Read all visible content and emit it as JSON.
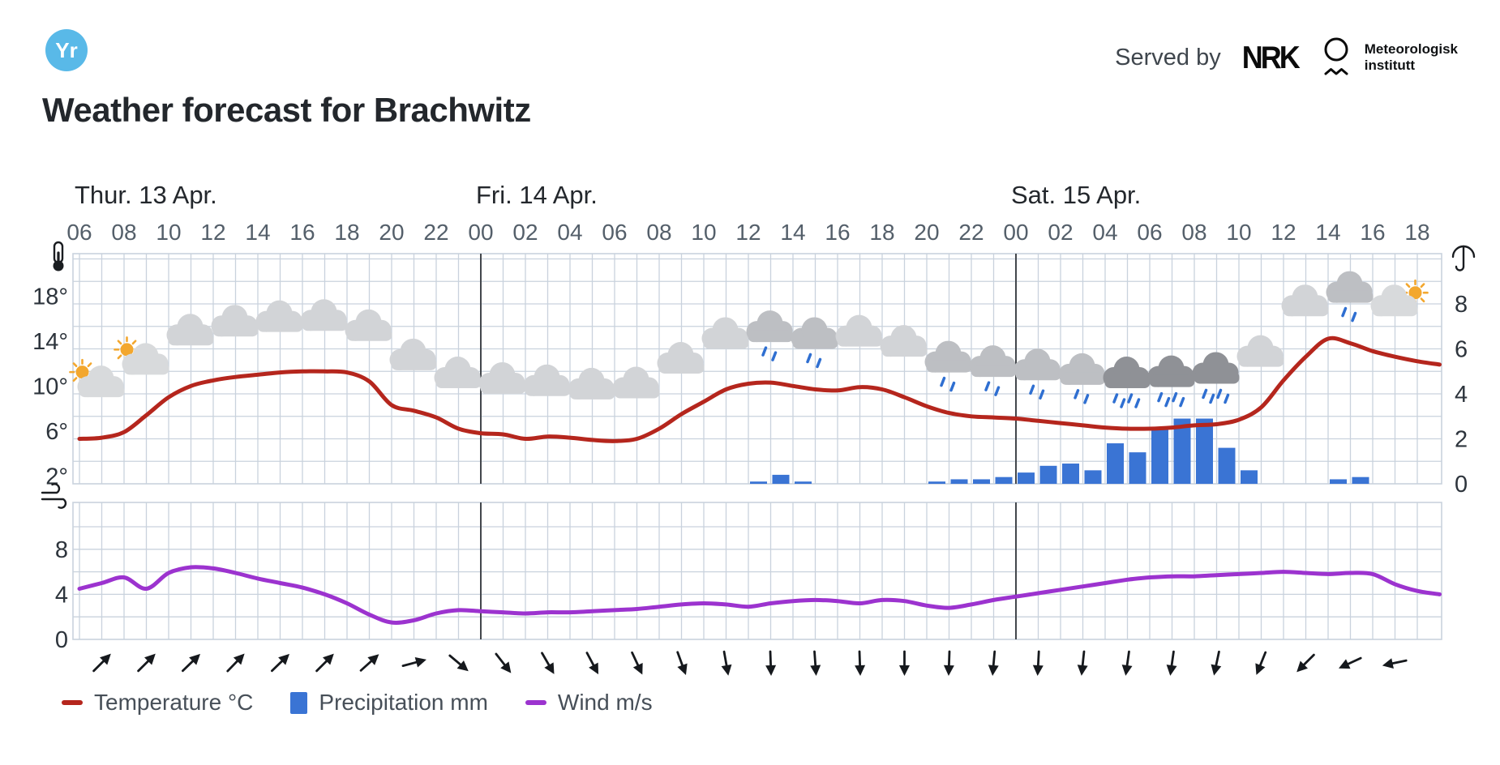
{
  "header": {
    "logo_text": "Yr",
    "served_by": "Served by",
    "nrk_logo_text": "NRK",
    "met_logo_line1": "Meteorologisk",
    "met_logo_line2": "institutt"
  },
  "title": "Weather forecast for Brachwitz",
  "legend": [
    {
      "label": "Temperature °C",
      "color": "#b5261d",
      "type": "line"
    },
    {
      "label": "Precipitation mm",
      "color": "#3a74d4",
      "type": "bar"
    },
    {
      "label": "Wind m/s",
      "color": "#9c33cf",
      "type": "line"
    }
  ],
  "colors": {
    "temperature": "#b5261d",
    "precipitation": "#3a74d4",
    "wind": "#9c33cf",
    "grid": "#c9d2dd",
    "day_separator": "#43474c",
    "axis_text": "#545f6a",
    "text_dark": "#23272c",
    "yr_blue": "#59b9e8",
    "rain_drop": "#2f6fd1",
    "sun": "#f3a72e"
  },
  "chart_data": [
    {
      "id": "temperature-precipitation",
      "type": "line+bar",
      "x_unit": "hours from Thu 06:00",
      "day_labels": [
        {
          "label": "Thur. 13 Apr.",
          "at_hour": 0
        },
        {
          "label": "Fri. 14 Apr.",
          "at_hour": 18
        },
        {
          "label": "Sat. 15 Apr.",
          "at_hour": 42
        }
      ],
      "hour_tick_labels": [
        "06",
        "08",
        "10",
        "12",
        "14",
        "16",
        "18",
        "20",
        "22",
        "00",
        "02",
        "04",
        "06",
        "08",
        "10",
        "12",
        "14",
        "16",
        "18",
        "20",
        "22",
        "00",
        "02",
        "04",
        "06",
        "08",
        "10",
        "12",
        "14",
        "16",
        "18"
      ],
      "day_boundaries_hours": [
        18,
        42
      ],
      "left_axis": {
        "icon": "thermometer-icon",
        "tick_labels": [
          "18°",
          "14°",
          "10°",
          "6°",
          "2°"
        ],
        "tick_values": [
          18,
          14,
          10,
          6,
          2
        ]
      },
      "right_axis": {
        "icon": "umbrella-icon",
        "tick_labels": [
          "8",
          "6",
          "4",
          "2",
          "0"
        ],
        "tick_values": [
          8,
          6,
          4,
          2,
          0
        ]
      },
      "series": [
        {
          "name": "Temperature °C",
          "type": "line",
          "color": "#b5261d",
          "values": [
            5.3,
            5.4,
            5.9,
            7.4,
            9.0,
            10.0,
            10.5,
            10.8,
            11.0,
            11.2,
            11.3,
            11.3,
            11.2,
            10.4,
            8.3,
            7.8,
            7.2,
            6.2,
            5.8,
            5.7,
            5.3,
            5.5,
            5.4,
            5.2,
            5.1,
            5.3,
            6.2,
            7.5,
            8.6,
            9.7,
            10.2,
            10.3,
            10.0,
            9.7,
            9.6,
            9.9,
            9.7,
            9.0,
            8.2,
            7.6,
            7.3,
            7.2,
            7.1,
            6.9,
            6.7,
            6.5,
            6.3,
            6.2,
            6.2,
            6.3,
            6.5,
            6.6,
            7.0,
            8.1,
            10.5,
            12.6,
            14.2,
            13.8,
            13.1,
            12.6,
            12.2,
            11.9
          ]
        },
        {
          "name": "Precipitation mm",
          "type": "bar",
          "color": "#3a74d4",
          "points": [
            [
              30,
              0.1
            ],
            [
              31,
              0.4
            ],
            [
              32,
              0.1
            ],
            [
              38,
              0.1
            ],
            [
              39,
              0.2
            ],
            [
              40,
              0.2
            ],
            [
              41,
              0.3
            ],
            [
              42,
              0.5
            ],
            [
              43,
              0.8
            ],
            [
              44,
              0.9
            ],
            [
              45,
              0.6
            ],
            [
              46,
              1.8
            ],
            [
              47,
              1.4
            ],
            [
              48,
              2.4
            ],
            [
              49,
              2.9
            ],
            [
              50,
              2.9
            ],
            [
              51,
              1.6
            ],
            [
              52,
              0.6
            ],
            [
              56,
              0.2
            ],
            [
              57,
              0.3
            ]
          ]
        }
      ],
      "weather_icons": [
        [
          1,
          "partly-sunny-left"
        ],
        [
          3,
          "partly-sunny-left"
        ],
        [
          5,
          "cloudy"
        ],
        [
          7,
          "cloudy"
        ],
        [
          9,
          "cloudy"
        ],
        [
          11,
          "cloudy"
        ],
        [
          13,
          "cloudy"
        ],
        [
          15,
          "cloudy"
        ],
        [
          17,
          "cloudy"
        ],
        [
          19,
          "cloudy"
        ],
        [
          21,
          "cloudy"
        ],
        [
          23,
          "cloudy"
        ],
        [
          25,
          "cloudy"
        ],
        [
          27,
          "cloudy"
        ],
        [
          29,
          "cloudy"
        ],
        [
          31,
          "light-rain"
        ],
        [
          33,
          "light-rain"
        ],
        [
          35,
          "cloudy"
        ],
        [
          37,
          "cloudy"
        ],
        [
          39,
          "light-rain"
        ],
        [
          41,
          "light-rain"
        ],
        [
          43,
          "light-rain"
        ],
        [
          45,
          "light-rain"
        ],
        [
          47,
          "rain"
        ],
        [
          49,
          "rain"
        ],
        [
          51,
          "rain"
        ],
        [
          53,
          "cloudy"
        ],
        [
          55,
          "cloudy"
        ],
        [
          57,
          "light-rain"
        ],
        [
          59,
          "partly-sunny-right"
        ]
      ]
    },
    {
      "id": "wind",
      "type": "line",
      "day_boundaries_hours": [
        18,
        42
      ],
      "left_axis": {
        "icon": "wind-icon",
        "tick_labels": [
          "8",
          "4",
          "0"
        ],
        "tick_values": [
          8,
          4,
          0
        ]
      },
      "series": [
        {
          "name": "Wind m/s",
          "type": "line",
          "color": "#9c33cf",
          "values": [
            4.5,
            5.0,
            5.5,
            4.5,
            5.9,
            6.4,
            6.3,
            5.9,
            5.4,
            5.0,
            4.6,
            4.0,
            3.2,
            2.2,
            1.5,
            1.7,
            2.3,
            2.6,
            2.5,
            2.4,
            2.3,
            2.4,
            2.4,
            2.5,
            2.6,
            2.7,
            2.9,
            3.1,
            3.2,
            3.1,
            2.9,
            3.2,
            3.4,
            3.5,
            3.4,
            3.2,
            3.5,
            3.4,
            3.0,
            2.8,
            3.1,
            3.5,
            3.8,
            4.1,
            4.4,
            4.7,
            5.0,
            5.3,
            5.5,
            5.6,
            5.6,
            5.7,
            5.8,
            5.9,
            6.0,
            5.9,
            5.8,
            5.9,
            5.8,
            4.9,
            4.3,
            4.0
          ]
        }
      ],
      "wind_arrows": [
        [
          1,
          -45
        ],
        [
          3,
          -45
        ],
        [
          5,
          -44
        ],
        [
          7,
          -46
        ],
        [
          9,
          -44
        ],
        [
          11,
          -45
        ],
        [
          13,
          -42
        ],
        [
          15,
          -15
        ],
        [
          17,
          40
        ],
        [
          19,
          52
        ],
        [
          21,
          60
        ],
        [
          23,
          62
        ],
        [
          25,
          65
        ],
        [
          27,
          70
        ],
        [
          29,
          80
        ],
        [
          31,
          88
        ],
        [
          33,
          86
        ],
        [
          35,
          88
        ],
        [
          37,
          90
        ],
        [
          39,
          92
        ],
        [
          41,
          95
        ],
        [
          43,
          93
        ],
        [
          45,
          96
        ],
        [
          47,
          98
        ],
        [
          49,
          98
        ],
        [
          51,
          102
        ],
        [
          53,
          112
        ],
        [
          55,
          135
        ],
        [
          57,
          155
        ],
        [
          59,
          168
        ]
      ]
    }
  ]
}
